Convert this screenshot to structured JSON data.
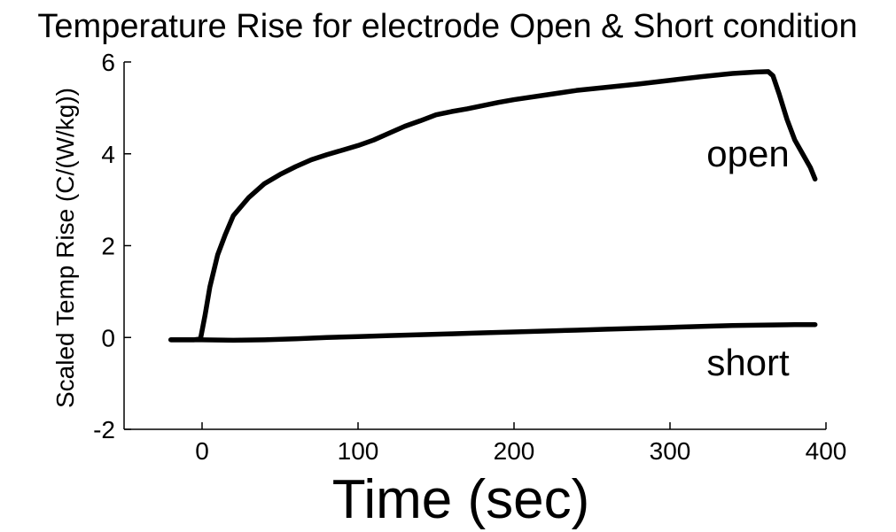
{
  "chart_data": {
    "type": "line",
    "title": "Temperature Rise for electrode Open & Short condition",
    "xlabel": "Time (sec)",
    "ylabel": "Scaled Temp Rise (C/(W/kg))",
    "xlim": [
      -50,
      400
    ],
    "ylim": [
      -2,
      6
    ],
    "xticks": [
      0,
      100,
      200,
      300,
      400
    ],
    "yticks": [
      -2,
      0,
      2,
      4,
      6
    ],
    "grid": false,
    "line_color": "#000000",
    "annotations": [
      {
        "text": "open",
        "x": 350,
        "y": 4.0
      },
      {
        "text": "short",
        "x": 350,
        "y": -0.55
      }
    ],
    "series": [
      {
        "name": "open",
        "x": [
          -20,
          -5,
          -1,
          2,
          5,
          10,
          15,
          20,
          30,
          40,
          50,
          60,
          70,
          80,
          90,
          100,
          110,
          120,
          130,
          140,
          150,
          160,
          170,
          180,
          190,
          200,
          220,
          240,
          260,
          280,
          300,
          320,
          340,
          355,
          363,
          366,
          370,
          375,
          380,
          385,
          390,
          393
        ],
        "y": [
          -0.05,
          -0.05,
          -0.03,
          0.5,
          1.1,
          1.8,
          2.25,
          2.65,
          3.05,
          3.35,
          3.55,
          3.72,
          3.87,
          3.98,
          4.08,
          4.18,
          4.3,
          4.45,
          4.6,
          4.72,
          4.85,
          4.92,
          4.98,
          5.05,
          5.12,
          5.18,
          5.28,
          5.38,
          5.45,
          5.52,
          5.6,
          5.68,
          5.75,
          5.78,
          5.79,
          5.7,
          5.3,
          4.75,
          4.3,
          4.0,
          3.7,
          3.45
        ]
      },
      {
        "name": "short",
        "x": [
          -20,
          0,
          20,
          40,
          60,
          80,
          100,
          120,
          140,
          160,
          180,
          200,
          220,
          240,
          260,
          280,
          300,
          320,
          340,
          360,
          380,
          393
        ],
        "y": [
          -0.05,
          -0.05,
          -0.06,
          -0.05,
          -0.03,
          0.0,
          0.02,
          0.04,
          0.06,
          0.08,
          0.1,
          0.12,
          0.14,
          0.16,
          0.18,
          0.2,
          0.22,
          0.24,
          0.26,
          0.27,
          0.28,
          0.28
        ]
      }
    ]
  }
}
